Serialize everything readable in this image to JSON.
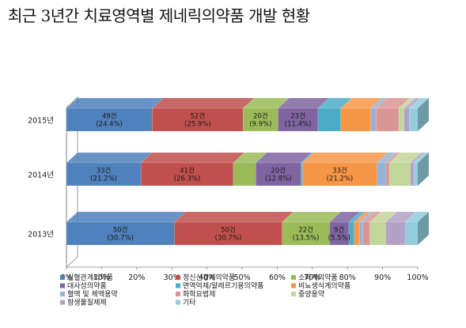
{
  "title": "최근 3년간 치료영역별 제네릭의약품 개발 현황",
  "chart_data": {
    "type": "bar",
    "orientation": "horizontal",
    "stacked": "percent",
    "title": "최근 3년간 치료영역별 제네릭의약품 개발 현황",
    "xlim": [
      0,
      100
    ],
    "x_ticks": [
      "0%",
      "10%",
      "20%",
      "30%",
      "40%",
      "50%",
      "60%",
      "70%",
      "80%",
      "90%",
      "100%"
    ],
    "categories": [
      "2015년",
      "2014년",
      "2013년"
    ],
    "legend_position": "bottom",
    "series": [
      {
        "name": "심혈관계의약품",
        "color": "#4F81BD",
        "values": [
          24.4,
          21.2,
          30.7
        ],
        "labels": [
          "49건\n(24.4%)",
          "33건\n(21.2%)",
          "50건\n(30.7%)"
        ]
      },
      {
        "name": "정신신경계의약품",
        "color": "#C0504D",
        "values": [
          25.9,
          26.3,
          30.7
        ],
        "labels": [
          "52건\n(25.9%)",
          "41건\n(26.3%)",
          "50건\n(30.7%)"
        ]
      },
      {
        "name": "소화계의약품",
        "color": "#9BBB59",
        "values": [
          9.9,
          6.4,
          13.5
        ],
        "labels": [
          "20건\n(9.9%)",
          "",
          "22건\n(13.5%)"
        ]
      },
      {
        "name": "대사성의약품",
        "color": "#8064A2",
        "values": [
          11.4,
          12.8,
          5.5
        ],
        "labels": [
          "23건\n(11.4%)",
          "20건\n(12.8%)",
          "9건\n(5.5%)"
        ]
      },
      {
        "name": "면역억제/알레르기용의약품",
        "color": "#4BACC6",
        "values": [
          6.5,
          0.5,
          1.5
        ],
        "labels": [
          "",
          "",
          ""
        ]
      },
      {
        "name": "비뇨생식계의약품",
        "color": "#F79646",
        "values": [
          8.5,
          21.2,
          1.5
        ],
        "labels": [
          "",
          "33건\n(21.2%)",
          ""
        ]
      },
      {
        "name": "혈액 및 체액용약",
        "color": "#95B3D7",
        "values": [
          1.5,
          2.5,
          1.0
        ],
        "labels": [
          "",
          "",
          ""
        ]
      },
      {
        "name": "화학요법제",
        "color": "#D99694",
        "values": [
          6.5,
          1.0,
          2.0
        ],
        "labels": [
          "",
          "",
          ""
        ]
      },
      {
        "name": "중양용약",
        "color": "#C3D69B",
        "values": [
          1.5,
          6.0,
          4.5
        ],
        "labels": [
          "",
          "",
          ""
        ]
      },
      {
        "name": "항생물질제제",
        "color": "#B2A2C7",
        "values": [
          1.5,
          1.0,
          5.5
        ],
        "labels": [
          "",
          "",
          ""
        ]
      },
      {
        "name": "기타",
        "color": "#93CDDD",
        "values": [
          2.4,
          1.1,
          3.6
        ],
        "labels": [
          "",
          "",
          ""
        ]
      }
    ]
  }
}
